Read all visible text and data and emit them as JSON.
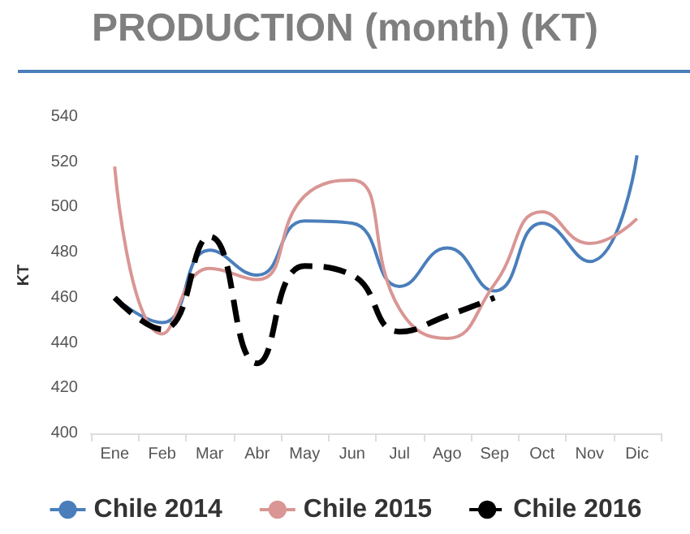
{
  "chart_data": {
    "type": "line",
    "title": "PRODUCTION (month) (KT)",
    "ylabel": "KT",
    "categories": [
      "Ene",
      "Feb",
      "Mar",
      "Abr",
      "May",
      "Jun",
      "Jul",
      "Ago",
      "Sep",
      "Oct",
      "Nov",
      "Dic"
    ],
    "series": [
      {
        "name": "Chile 2014",
        "color": "#4a7ebb",
        "line_style": "solid",
        "values": [
          460,
          449,
          481,
          470,
          494,
          493,
          465,
          482,
          463,
          493,
          476,
          523
        ]
      },
      {
        "name": "Chile 2015",
        "color": "#d99694",
        "line_style": "solid",
        "values": [
          518,
          444,
          473,
          468,
          505,
          512,
          455,
          442,
          466,
          498,
          484,
          495
        ]
      },
      {
        "name": "Chile 2016",
        "color": "#000000",
        "line_style": "dashed",
        "values": [
          460,
          446,
          487,
          431,
          474,
          470,
          445,
          452,
          460,
          null,
          null,
          null
        ]
      }
    ],
    "ylim": [
      400,
      540
    ],
    "yticks": [
      400,
      420,
      440,
      460,
      480,
      500,
      520,
      540
    ],
    "grid": false,
    "legend": "bottom",
    "marker": "none"
  }
}
